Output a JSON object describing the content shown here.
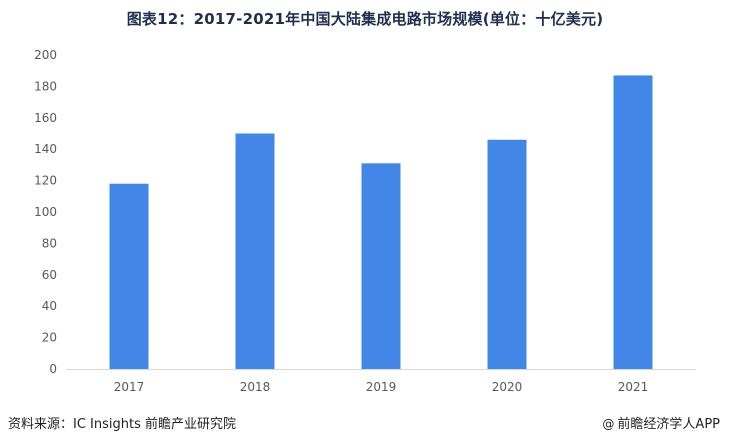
{
  "chart_data": {
    "type": "bar",
    "title": "图表12：2017-2021年中国大陆集成电路市场规模(单位：十亿美元)",
    "categories": [
      "2017",
      "2018",
      "2019",
      "2020",
      "2021"
    ],
    "values": [
      118,
      150,
      131,
      146,
      187
    ],
    "ylim": [
      0,
      200
    ],
    "yticks": [
      0,
      20,
      40,
      60,
      80,
      100,
      120,
      140,
      160,
      180,
      200
    ],
    "xlabel": "",
    "ylabel": "",
    "grid": false,
    "legend": "none",
    "bar_color": "#4286e8"
  },
  "footer": {
    "source": "资料来源：IC Insights 前瞻产业研究院",
    "brand_icon": "copyright-icon",
    "brand_symbol": "@",
    "brand": "前瞻经济学人APP"
  }
}
